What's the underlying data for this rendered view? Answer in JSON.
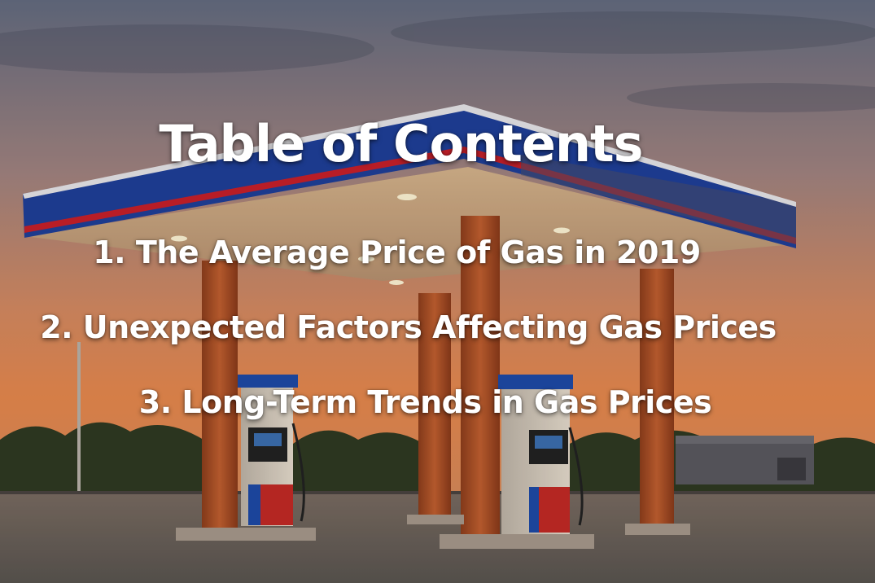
{
  "title": "Table of Contents",
  "items": [
    {
      "label": "1. The Average Price of Gas in 2019"
    },
    {
      "label": "2. Unexpected Factors Affecting Gas Prices"
    },
    {
      "label": "3. Long-Term Trends in Gas Prices"
    }
  ],
  "colors": {
    "sky_top": "#6b7384",
    "sky_mid": "#c98a6a",
    "sky_horizon": "#e8894e",
    "canopy_blue": "#1f3f9a",
    "canopy_red": "#c8202a",
    "column": "#b5562a",
    "pump_red": "#c42a25",
    "pump_blue": "#1e4aa8",
    "ground": "#6e6660",
    "text": "#ffffff"
  }
}
